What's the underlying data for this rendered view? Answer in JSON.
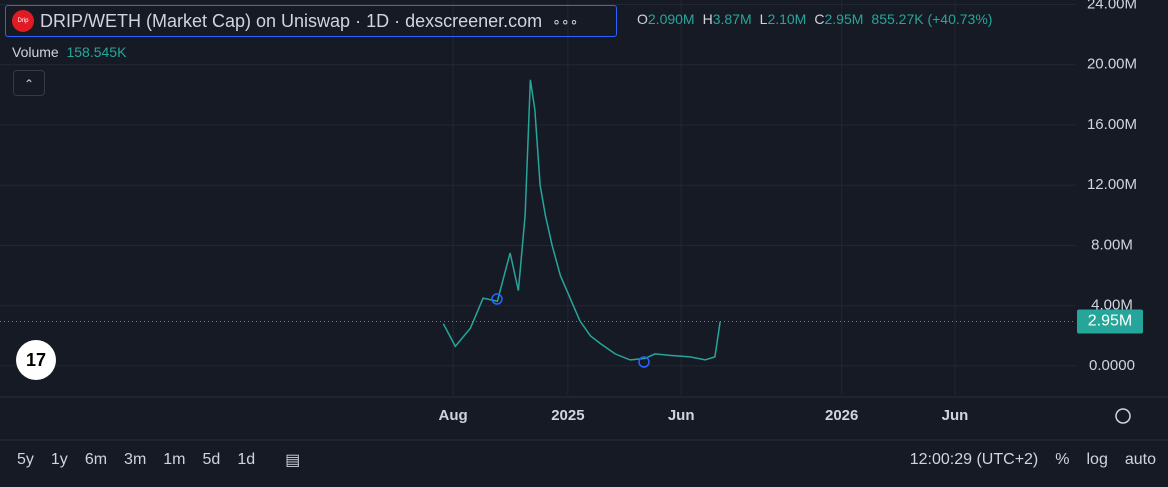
{
  "header": {
    "logo": "Drip",
    "title": "DRIP/WETH (Market Cap) on Uniswap · 1D · dexscreener.com",
    "more": "∘∘∘",
    "ohlc": [
      {
        "key": "O",
        "value": "2.090M"
      },
      {
        "key": "H",
        "value": "3.87M"
      },
      {
        "key": "L",
        "value": "2.10M"
      },
      {
        "key": "C",
        "value": "2.95M"
      }
    ],
    "change": "855.27K (+40.73%)"
  },
  "volume": {
    "label": "Volume",
    "value": "158.545K"
  },
  "chart_data": {
    "type": "line",
    "color": "#26a69a",
    "x": [
      200,
      216,
      236,
      253,
      272,
      289,
      300,
      309,
      316,
      322,
      329,
      336,
      345,
      356,
      369,
      382,
      396,
      409,
      429,
      449,
      469,
      482,
      502,
      529,
      549,
      562,
      569
    ],
    "values": [
      2800000,
      1300000,
      2500000,
      4500000,
      4300000,
      7500000,
      5000000,
      10000000,
      19000000,
      17000000,
      12000000,
      10000000,
      8000000,
      6000000,
      4500000,
      3000000,
      2000000,
      1500000,
      800000,
      400000,
      500000,
      800000,
      700000,
      600000,
      400000,
      600000,
      2950000
    ],
    "xlim": [
      -391,
      1042
    ],
    "xticks": [
      {
        "value": 213,
        "label": "Aug"
      },
      {
        "value": 366,
        "label": "2025"
      },
      {
        "value": 517,
        "label": "Jun"
      },
      {
        "value": 731,
        "label": "2026"
      },
      {
        "value": 882,
        "label": "Jun"
      }
    ],
    "ylim": [
      -1930000,
      24300000
    ],
    "yticks": [
      {
        "value": 0,
        "label": "0.0000"
      },
      {
        "value": 4000000,
        "label": "4.00M"
      },
      {
        "value": 8000000,
        "label": "8.00M"
      },
      {
        "value": 12000000,
        "label": "12.00M"
      },
      {
        "value": 16000000,
        "label": "16.00M"
      },
      {
        "value": 20000000,
        "label": "20.00M"
      },
      {
        "value": 24000000,
        "label": "24.00M"
      }
    ],
    "last_value": 2950000,
    "last_label": "2.95M",
    "grid": true
  },
  "toolbar": {
    "ranges": [
      "5y",
      "1y",
      "6m",
      "3m",
      "1m",
      "5d",
      "1d"
    ],
    "time": "12:00:29 (UTC+2)",
    "buttons": [
      "%",
      "log",
      "auto"
    ]
  }
}
